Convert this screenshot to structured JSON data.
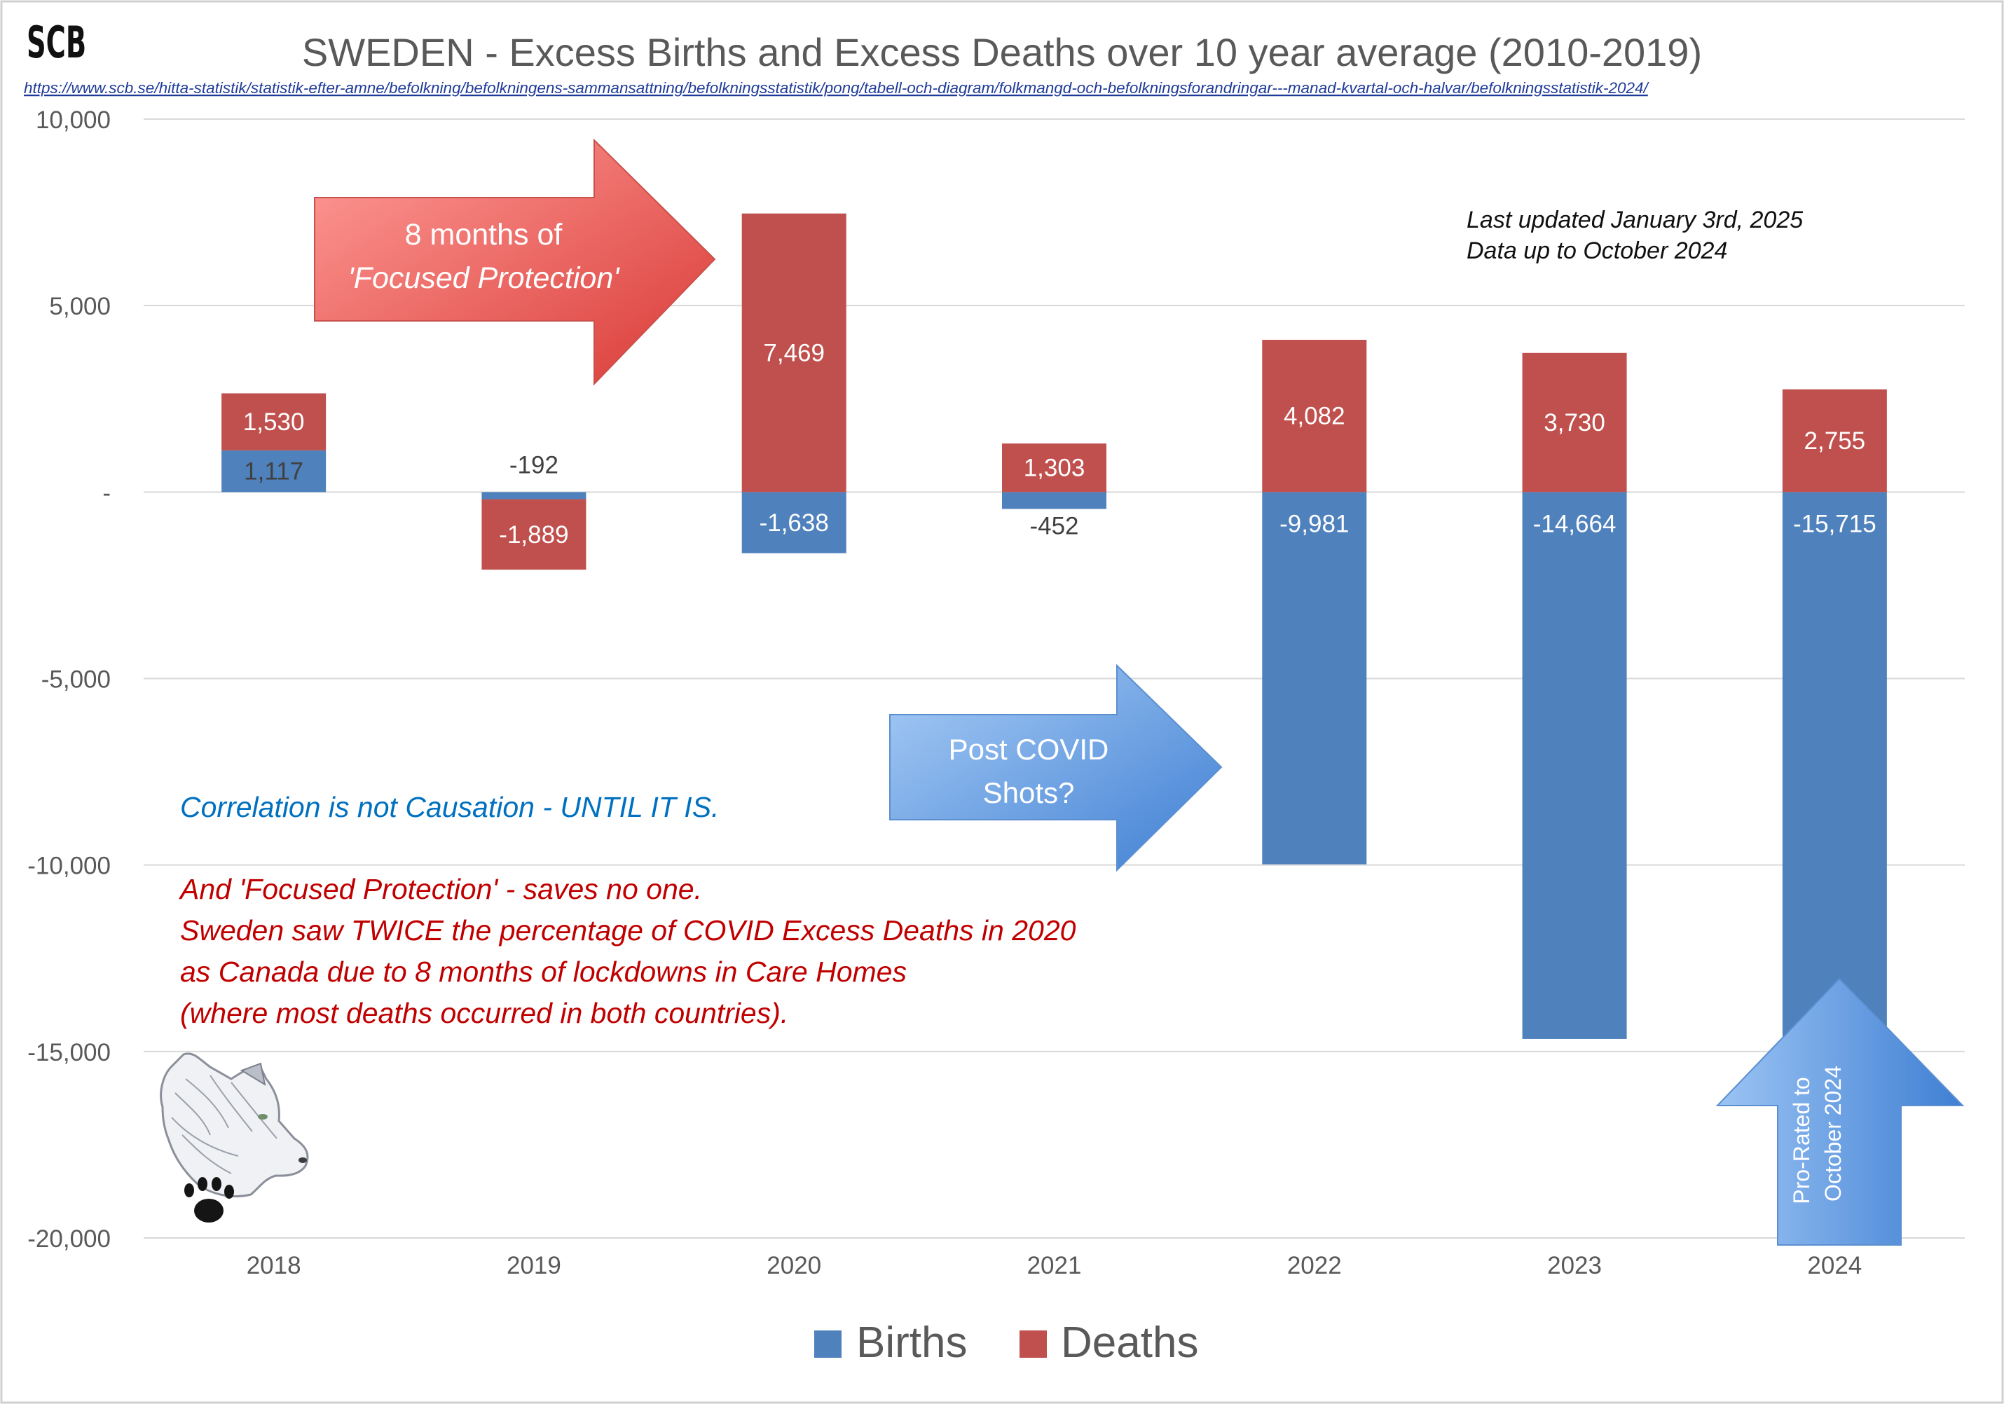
{
  "logo_text": "SCB",
  "title": "SWEDEN - Excess Births and Excess Deaths over 10 year average (2010-2019)",
  "source_url": "https://www.scb.se/hitta-statistik/statistik-efter-amne/befolkning/befolkningens-sammansattning/befolkningsstatistik/pong/tabell-och-diagram/folkmangd-och-befolkningsforandringar---manad-kvartal-och-halvar/befolkningsstatistik-2024/",
  "update_note": {
    "line1": "Last updated January 3rd, 2025",
    "line2": "Data up to October 2024"
  },
  "callouts": {
    "focused_protection": {
      "line1": "8 months of",
      "line2": "'Focused Protection'"
    },
    "post_covid": {
      "line1": "Post COVID",
      "line2": "Shots?"
    },
    "pro_rated": {
      "line1": "Pro-Rated to",
      "line2": "October 2024"
    }
  },
  "annotations": {
    "correlation": "Correlation is not Causation - UNTIL IT IS.",
    "focused_lines": [
      "And 'Focused Protection' - saves no one.",
      "Sweden saw TWICE the percentage of COVID Excess Deaths in 2020",
      "as Canada due to 8 months of lockdowns in Care Homes",
      "(where most deaths occurred in both countries)."
    ]
  },
  "icons": [
    "wolf-paw-logo"
  ],
  "colors": {
    "births": "#4f81bd",
    "deaths": "#c0504d",
    "grid": "#d9d9d9",
    "axis_text": "#595959",
    "title": "#595959",
    "url": "#1f3b99",
    "correlation_text": "#0070c0",
    "focused_text": "#c00000"
  },
  "chart_data": {
    "type": "bar",
    "stacked": true,
    "title": "SWEDEN - Excess Births and Excess Deaths over 10 year average (2010-2019)",
    "categories": [
      "2018",
      "2019",
      "2020",
      "2021",
      "2022",
      "2023",
      "2024"
    ],
    "series": [
      {
        "name": "Births",
        "values": [
          1117,
          -192,
          -1638,
          -452,
          -9981,
          -14664,
          -15715
        ]
      },
      {
        "name": "Deaths",
        "values": [
          1530,
          -1889,
          7469,
          1303,
          4082,
          3730,
          2755
        ]
      }
    ],
    "data_labels": {
      "Births": [
        "1,117",
        "-192",
        "-1,638",
        "-452",
        "-9,981",
        "-14,664",
        "-15,715"
      ],
      "Deaths": [
        "1,530",
        "-1,889",
        "7,469",
        "1,303",
        "4,082",
        "3,730",
        "2,755"
      ]
    },
    "ylim": [
      -20000,
      10000
    ],
    "yticks": [
      10000,
      5000,
      0,
      -5000,
      -10000,
      -15000,
      -20000
    ],
    "ytick_labels": [
      "10,000",
      "5,000",
      "-",
      "-5,000",
      "-10,000",
      "-15,000",
      "-20,000"
    ],
    "xlabel": "",
    "ylabel": "",
    "grid": true,
    "legend": {
      "position": "bottom",
      "entries": [
        "Births",
        "Deaths"
      ]
    }
  }
}
